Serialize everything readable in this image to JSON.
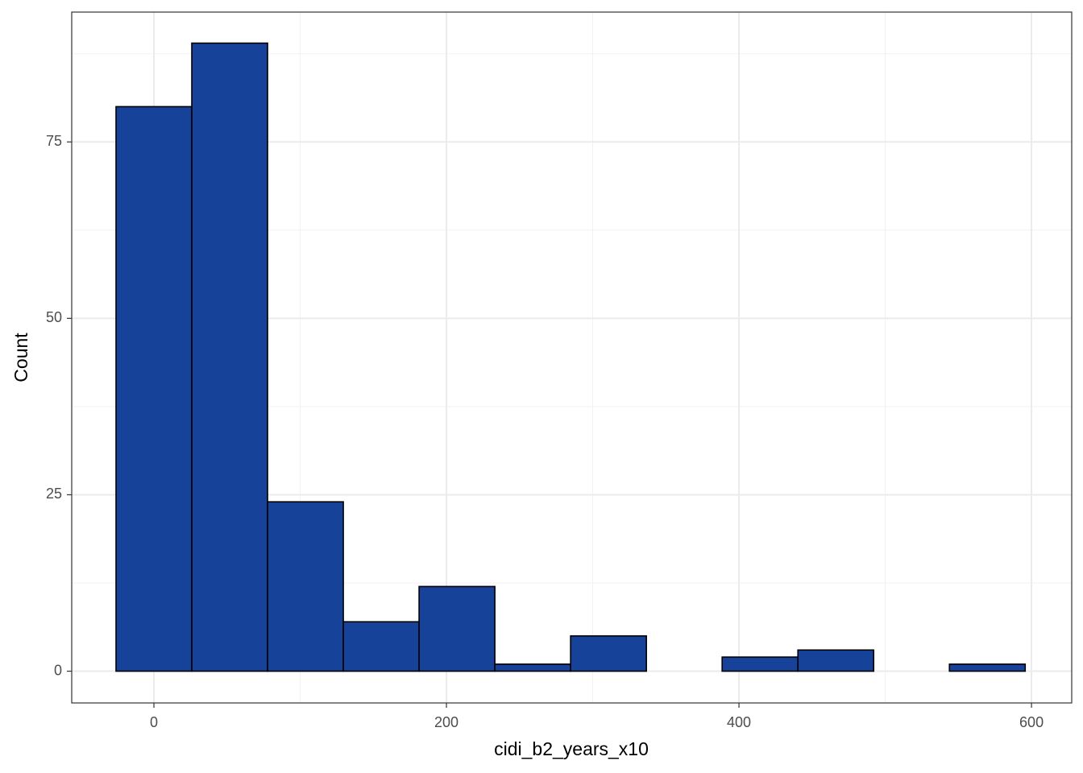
{
  "chart_data": {
    "type": "histogram",
    "x_label": "cidi_b2_years_x10",
    "y_label": "Count",
    "bins": [
      -25.9,
      25.9,
      77.7,
      129.5,
      181.3,
      233.1,
      284.9,
      336.7,
      388.5,
      440.3,
      492.1,
      543.9,
      595.7
    ],
    "counts": [
      80,
      89,
      24,
      7,
      12,
      1,
      5,
      0,
      2,
      3,
      0,
      1
    ],
    "color": "#17429a",
    "edge_color": "#000000",
    "xlim": [
      -56.2,
      627.5
    ],
    "ylim": [
      -4.5,
      93.4
    ],
    "xticks": [
      0,
      200,
      400,
      600
    ],
    "yticks": [
      0,
      25,
      50,
      75
    ],
    "x_minor_breaks": [
      100,
      300,
      500
    ],
    "y_minor_breaks": [
      12.5,
      37.5,
      62.5,
      87.5
    ],
    "grid": true
  }
}
